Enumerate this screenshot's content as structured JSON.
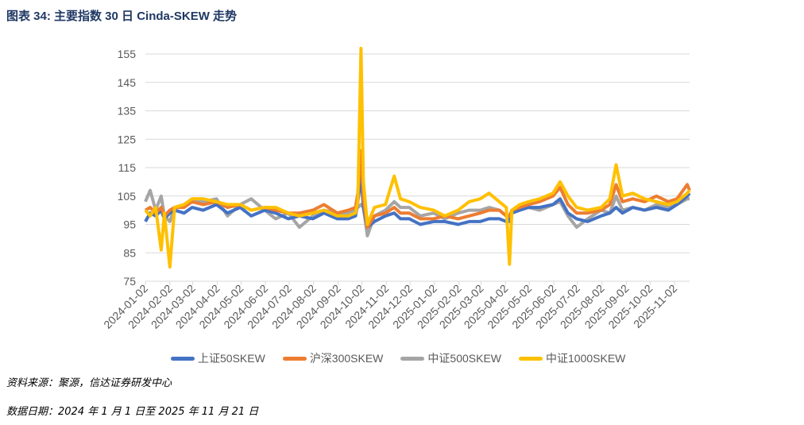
{
  "title": "图表 34:  主要指数 30 日 Cinda-SKEW 走势",
  "source": "资料来源：聚源，信达证券研发中心",
  "date_range": "数据日期：2024 年 1 月 1 日至 2025 年 11 月 21 日",
  "chart_data": {
    "type": "line",
    "title": "",
    "xlabel": "",
    "ylabel": "",
    "ylim": [
      75,
      155
    ],
    "yticks": [
      75,
      85,
      95,
      105,
      115,
      125,
      135,
      145,
      155
    ],
    "xticks": [
      "2024-01-02",
      "2024-02-02",
      "2024-03-02",
      "2024-04-02",
      "2024-05-02",
      "2024-06-02",
      "2024-07-02",
      "2024-08-02",
      "2024-09-02",
      "2024-10-02",
      "2024-11-02",
      "2024-12-02",
      "2025-01-02",
      "2025-02-02",
      "2025-03-02",
      "2025-04-02",
      "2025-05-02",
      "2025-06-02",
      "2025-07-02",
      "2025-08-02",
      "2025-09-02",
      "2025-10-02",
      "2025-11-02"
    ],
    "grid": true,
    "legend": "bottom",
    "x": [
      "2024-01-02",
      "2024-01-08",
      "2024-01-15",
      "2024-01-22",
      "2024-01-26",
      "2024-02-02",
      "2024-02-08",
      "2024-02-20",
      "2024-03-01",
      "2024-03-15",
      "2024-04-01",
      "2024-04-15",
      "2024-05-01",
      "2024-05-15",
      "2024-06-01",
      "2024-06-15",
      "2024-07-01",
      "2024-07-15",
      "2024-08-01",
      "2024-08-15",
      "2024-09-01",
      "2024-09-15",
      "2024-09-24",
      "2024-09-27",
      "2024-10-01",
      "2024-10-04",
      "2024-10-09",
      "2024-10-18",
      "2024-11-01",
      "2024-11-12",
      "2024-11-20",
      "2024-12-01",
      "2024-12-15",
      "2025-01-01",
      "2025-01-15",
      "2025-02-01",
      "2025-02-15",
      "2025-03-01",
      "2025-03-12",
      "2025-03-25",
      "2025-04-03",
      "2025-04-07",
      "2025-04-10",
      "2025-04-20",
      "2025-05-01",
      "2025-05-15",
      "2025-06-01",
      "2025-06-10",
      "2025-06-20",
      "2025-07-01",
      "2025-07-15",
      "2025-08-01",
      "2025-08-12",
      "2025-08-20",
      "2025-08-28",
      "2025-09-10",
      "2025-09-25",
      "2025-10-10",
      "2025-10-25",
      "2025-11-05",
      "2025-11-18",
      "2025-11-21"
    ],
    "series": [
      {
        "name": "上证50SKEW",
        "color": "#4472c4",
        "values": [
          96,
          99,
          98,
          100,
          97,
          99,
          100,
          99,
          101,
          100,
          102,
          99,
          101,
          98,
          100,
          99,
          97,
          98,
          97,
          99,
          97,
          97,
          98,
          103,
          112,
          101,
          94,
          96,
          98,
          99,
          97,
          97,
          95,
          96,
          96,
          95,
          96,
          96,
          97,
          97,
          96,
          96,
          99,
          100,
          101,
          101,
          102,
          104,
          99,
          97,
          96,
          98,
          99,
          101,
          99,
          101,
          100,
          101,
          100,
          102,
          105,
          106
        ]
      },
      {
        "name": "沪深300SKEW",
        "color": "#ed7d31",
        "values": [
          100,
          101,
          99,
          101,
          98,
          100,
          101,
          101,
          103,
          102,
          103,
          101,
          102,
          100,
          101,
          100,
          99,
          99,
          100,
          102,
          99,
          100,
          101,
          106,
          121,
          104,
          94,
          98,
          99,
          101,
          99,
          99,
          97,
          97,
          98,
          97,
          98,
          99,
          100,
          100,
          98,
          98,
          100,
          101,
          102,
          103,
          105,
          108,
          102,
          99,
          99,
          100,
          102,
          109,
          103,
          104,
          103,
          105,
          103,
          104,
          109,
          107
        ]
      },
      {
        "name": "中证500SKEW",
        "color": "#a5a5a5",
        "values": [
          103,
          107,
          100,
          105,
          98,
          96,
          101,
          102,
          103,
          103,
          104,
          98,
          102,
          104,
          100,
          97,
          99,
          94,
          98,
          100,
          99,
          99,
          100,
          101,
          102,
          101,
          91,
          98,
          100,
          103,
          101,
          101,
          98,
          99,
          97,
          99,
          100,
          100,
          101,
          100,
          98,
          97,
          100,
          101,
          101,
          100,
          102,
          103,
          98,
          94,
          97,
          100,
          99,
          105,
          100,
          101,
          100,
          102,
          101,
          102,
          104,
          104
        ]
      },
      {
        "name": "中证1000SKEW",
        "color": "#ffc000",
        "values": [
          100,
          98,
          101,
          86,
          99,
          80,
          101,
          102,
          104,
          104,
          103,
          102,
          102,
          100,
          101,
          101,
          99,
          98,
          99,
          100,
          98,
          98,
          99,
          103,
          157,
          110,
          95,
          101,
          102,
          112,
          104,
          103,
          101,
          100,
          98,
          100,
          103,
          104,
          106,
          103,
          101,
          81,
          100,
          102,
          103,
          104,
          106,
          110,
          105,
          101,
          100,
          101,
          104,
          116,
          105,
          106,
          104,
          103,
          102,
          103,
          106,
          107
        ]
      }
    ]
  },
  "legend": {
    "items": [
      "上证50SKEW",
      "沪深300SKEW",
      "中证500SKEW",
      "中证1000SKEW"
    ]
  }
}
